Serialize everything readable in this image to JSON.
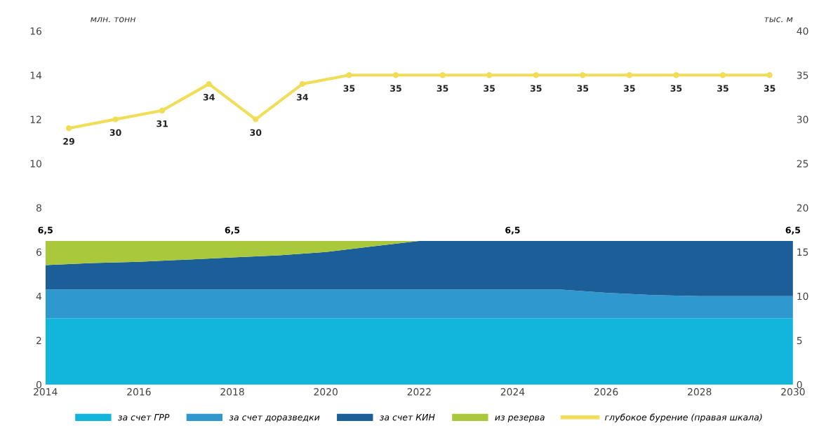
{
  "chart_data": {
    "type": "area",
    "stacked": true,
    "ylabel": "млн. тонн",
    "y2label": "тыс. м",
    "x": [
      2014,
      2015,
      2016,
      2017,
      2018,
      2019,
      2020,
      2021,
      2022,
      2023,
      2024,
      2025,
      2026,
      2027,
      2028,
      2029,
      2030
    ],
    "series": [
      {
        "name": "за счет ГРР",
        "color": "#12b5dc",
        "values": [
          3.0,
          3.0,
          3.0,
          3.0,
          3.0,
          3.0,
          3.0,
          3.0,
          3.0,
          3.0,
          3.0,
          3.0,
          3.0,
          3.0,
          3.0,
          3.0,
          3.0
        ]
      },
      {
        "name": "за счет доразведки",
        "color": "#2f98cf",
        "values": [
          1.3,
          1.3,
          1.3,
          1.3,
          1.3,
          1.3,
          1.3,
          1.3,
          1.3,
          1.3,
          1.3,
          1.3,
          1.15,
          1.05,
          1.0,
          1.0,
          1.0
        ]
      },
      {
        "name": "за счет КИН",
        "color": "#1c5f98",
        "values": [
          1.1,
          1.2,
          1.25,
          1.35,
          1.45,
          1.55,
          1.7,
          1.95,
          2.2,
          2.2,
          2.2,
          2.2,
          2.35,
          2.45,
          2.5,
          2.5,
          2.5
        ]
      },
      {
        "name": "из резерва",
        "color": "#a9c83c",
        "values": [
          1.1,
          1.0,
          0.95,
          0.85,
          0.75,
          0.65,
          0.5,
          0.25,
          0,
          0,
          0,
          0,
          0,
          0,
          0,
          0,
          0
        ]
      },
      {
        "name": "глубокое бурение (правая шкала)",
        "type": "line",
        "axis": "y2",
        "color": "#f0de58",
        "marker": "circle",
        "x": [
          2014.5,
          2015.5,
          2016.5,
          2017.5,
          2018.5,
          2019.5,
          2020.5,
          2021.5,
          2022.5,
          2023.5,
          2024.5,
          2025.5,
          2026.5,
          2027.5,
          2028.5,
          2029.5
        ],
        "values": [
          29,
          30,
          31,
          34,
          30,
          34,
          35,
          35,
          35,
          35,
          35,
          35,
          35,
          35,
          35,
          35
        ],
        "value_labels": [
          "29",
          "30",
          "31",
          "34",
          "30",
          "34",
          "35",
          "35",
          "35",
          "35",
          "35",
          "35",
          "35",
          "35",
          "35",
          "35"
        ]
      }
    ],
    "annotations": [
      {
        "text": "6,5",
        "x": 2014,
        "y": 6.5
      },
      {
        "text": "6,5",
        "x": 2018,
        "y": 6.5
      },
      {
        "text": "6,5",
        "x": 2024,
        "y": 6.5
      },
      {
        "text": "6,5",
        "x": 2030,
        "y": 6.5
      }
    ],
    "xlim": [
      2014,
      2030
    ],
    "xticks": [
      2014,
      2016,
      2018,
      2020,
      2022,
      2024,
      2026,
      2028,
      2030
    ],
    "ylim": [
      0,
      16
    ],
    "yticks": [
      0,
      2,
      4,
      6,
      8,
      10,
      12,
      14,
      16
    ],
    "y2lim": [
      0,
      40
    ],
    "y2ticks": [
      0,
      5,
      10,
      15,
      20,
      25,
      30,
      35,
      40
    ],
    "grid": false,
    "legend": "bottom"
  }
}
